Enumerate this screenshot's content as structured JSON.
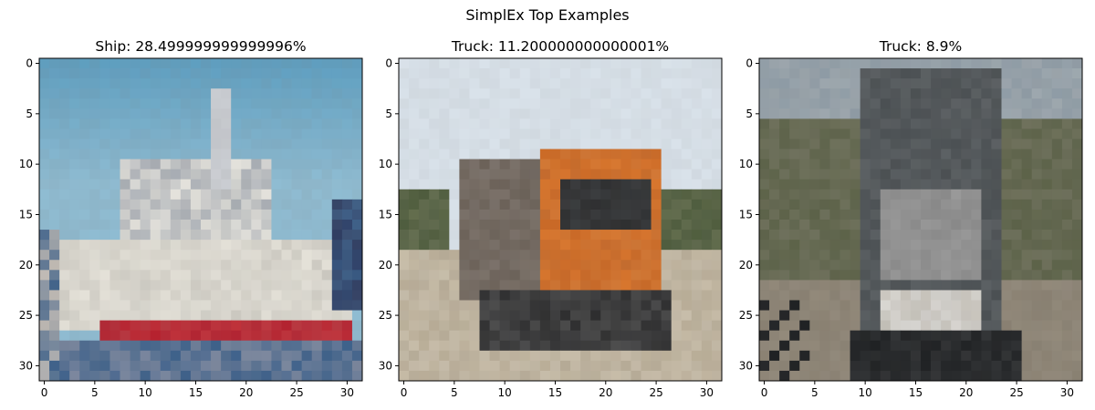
{
  "figure": {
    "suptitle": "SimplEx Top Examples"
  },
  "chart_data": [
    {
      "type": "image",
      "title": "Ship: 28.499999999999996%",
      "label": "Ship",
      "weight_percent": 28.499999999999996,
      "xlim": [
        -0.5,
        31.5
      ],
      "ylim": [
        31.5,
        -0.5
      ],
      "xticks": [
        "0",
        "5",
        "10",
        "15",
        "20",
        "25",
        "30"
      ],
      "yticks": [
        "0",
        "5",
        "10",
        "15",
        "20",
        "25",
        "30"
      ],
      "image_palette": {
        "sky": "#5f9fc0",
        "sky_light": "#8fbcd2",
        "hull": "#d4d1c8",
        "stripe": "#b5202e",
        "water": "#3a5f8a",
        "structure": "#a9aeb5"
      }
    },
    {
      "type": "image",
      "title": "Truck: 11.200000000000001%",
      "label": "Truck",
      "weight_percent": 11.200000000000001,
      "xlim": [
        -0.5,
        31.5
      ],
      "ylim": [
        31.5,
        -0.5
      ],
      "xticks": [
        "0",
        "5",
        "10",
        "15",
        "20",
        "25",
        "30"
      ],
      "yticks": [
        "0",
        "5",
        "10",
        "15",
        "20",
        "25",
        "30"
      ],
      "image_palette": {
        "sky": "#d9e2ea",
        "cab": "#d9772e",
        "cargo": "#6b6158",
        "trees": "#4c5a3b",
        "road": "#b9ad97",
        "dark": "#2b2b2c"
      }
    },
    {
      "type": "image",
      "title": "Truck: 8.9%",
      "label": "Truck",
      "weight_percent": 8.9,
      "xlim": [
        -0.5,
        31.5
      ],
      "ylim": [
        31.5,
        -0.5
      ],
      "xticks": [
        "0",
        "5",
        "10",
        "15",
        "20",
        "25",
        "30"
      ],
      "yticks": [
        "0",
        "5",
        "10",
        "15",
        "20",
        "25",
        "30"
      ],
      "image_palette": {
        "sky": "#8f9ca6",
        "body": "#4a4f52",
        "grille": "#8a8a8a",
        "road": "#8a8172",
        "trees": "#5c6248",
        "dark": "#1f2123"
      }
    }
  ]
}
